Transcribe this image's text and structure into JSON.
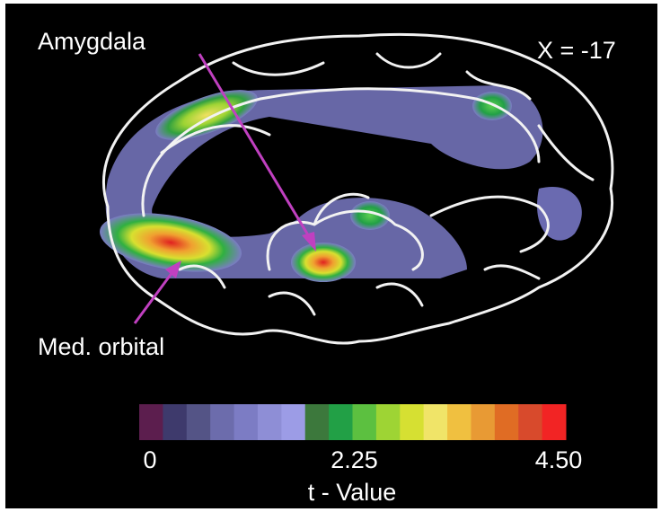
{
  "labels": {
    "amygdala": "Amygdala",
    "slice": "X = -17",
    "med_orbital": "Med. orbital"
  },
  "colorbar": {
    "title": "t - Value",
    "range": [
      0,
      4.5
    ],
    "ticks": [
      0,
      2.25,
      {
        "value": 4.5,
        "label": "4.50"
      }
    ],
    "colors": [
      "#5c1e4e",
      "#3e3a6c",
      "#545486",
      "#6c6cac",
      "#7c7cc4",
      "#8e8ed6",
      "#9c9ce6",
      "#3c783c",
      "#22a046",
      "#5cc040",
      "#9ed434",
      "#d6e032",
      "#f0e468",
      "#f0c040",
      "#e89a34",
      "#e06c24",
      "#d84a2c",
      "#f22424"
    ]
  }
}
